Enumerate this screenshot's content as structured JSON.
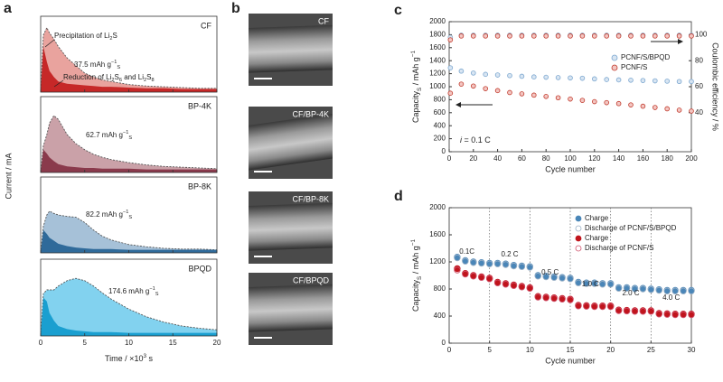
{
  "chart_data": [
    {
      "type": "area",
      "panel": "a",
      "x_label": [
        {
          "text": "Time / ×10"
        },
        {
          "sup": "3"
        },
        {
          "text": " s"
        }
      ],
      "y_label": "Current / mA",
      "xlim": [
        0,
        20
      ],
      "xticks": [
        0,
        5,
        10,
        15,
        20
      ],
      "x": [
        0,
        0.3,
        0.7,
        1,
        1.5,
        2,
        3,
        4,
        5,
        6,
        7,
        8,
        10,
        12,
        14,
        16,
        18,
        20
      ],
      "subplots": [
        {
          "name": "CF",
          "color": "#c62828",
          "fill": "#e9a39e",
          "ylim": [
            0,
            1
          ],
          "total": [
            0,
            0.75,
            0.85,
            0.78,
            0.7,
            0.6,
            0.45,
            0.35,
            0.25,
            0.2,
            0.16,
            0.14,
            0.1,
            0.08,
            0.07,
            0.06,
            0.05,
            0.05
          ],
          "base": [
            0,
            0.6,
            0.4,
            0.28,
            0.2,
            0.14,
            0.11,
            0.1,
            0.09,
            0.08,
            0.07,
            0.07,
            0.06,
            0.05,
            0.05,
            0.04,
            0.04,
            0.04
          ],
          "capacity": [
            {
              "text": "37.5 mAh g"
            },
            {
              "sup": "−1"
            },
            {
              "sub": "S"
            }
          ],
          "notes": [
            [
              {
                "text": "Precipitation of Li"
              },
              {
                "sub": "2"
              },
              {
                "text": "S"
              }
            ],
            [
              {
                "text": "Reduction of Li"
              },
              {
                "sub": "2"
              },
              {
                "text": "S"
              },
              {
                "sub": "6"
              },
              {
                "text": " and Li"
              },
              {
                "sub": "2"
              },
              {
                "text": "S"
              },
              {
                "sub": "8"
              }
            ]
          ]
        },
        {
          "name": "BP-4K",
          "color": "#8a3a4c",
          "fill": "#caa1a8",
          "ylim": [
            0,
            1
          ],
          "total": [
            0,
            0.35,
            0.5,
            0.65,
            0.75,
            0.7,
            0.5,
            0.38,
            0.3,
            0.24,
            0.2,
            0.17,
            0.13,
            0.1,
            0.08,
            0.07,
            0.06,
            0.05
          ],
          "base": [
            0,
            0.3,
            0.25,
            0.2,
            0.15,
            0.11,
            0.08,
            0.07,
            0.06,
            0.06,
            0.05,
            0.05,
            0.05,
            0.04,
            0.04,
            0.04,
            0.04,
            0.04
          ],
          "capacity": [
            {
              "text": "62.7 mAh g"
            },
            {
              "sup": "−1"
            },
            {
              "sub": "S"
            }
          ]
        },
        {
          "name": "BP-8K",
          "color": "#2f6a9a",
          "fill": "#a6c1d8",
          "ylim": [
            0,
            1
          ],
          "total": [
            0,
            0.35,
            0.5,
            0.55,
            0.52,
            0.5,
            0.48,
            0.47,
            0.4,
            0.3,
            0.22,
            0.17,
            0.11,
            0.08,
            0.06,
            0.05,
            0.05,
            0.04
          ],
          "base": [
            0,
            0.3,
            0.25,
            0.2,
            0.16,
            0.12,
            0.09,
            0.07,
            0.06,
            0.05,
            0.05,
            0.05,
            0.04,
            0.04,
            0.04,
            0.04,
            0.04,
            0.04
          ],
          "capacity": [
            {
              "text": "82.2 mAh g"
            },
            {
              "sup": "−1"
            },
            {
              "sub": "S"
            }
          ]
        },
        {
          "name": "BPQD",
          "color": "#1a9fd0",
          "fill": "#82d2ef",
          "ylim": [
            0,
            1
          ],
          "total": [
            0,
            0.55,
            0.6,
            0.6,
            0.6,
            0.65,
            0.72,
            0.75,
            0.72,
            0.65,
            0.56,
            0.48,
            0.35,
            0.25,
            0.18,
            0.13,
            0.1,
            0.08
          ],
          "base": [
            0,
            0.5,
            0.45,
            0.3,
            0.2,
            0.13,
            0.09,
            0.07,
            0.06,
            0.05,
            0.05,
            0.05,
            0.04,
            0.04,
            0.04,
            0.04,
            0.04,
            0.04
          ],
          "capacity": [
            {
              "text": "174.6 mAh g"
            },
            {
              "sup": "−1"
            },
            {
              "sub": "S"
            }
          ]
        }
      ]
    },
    {
      "type": "image",
      "panel": "b",
      "labels": [
        "CF",
        "CF/BP-4K",
        "CF/BP-8K",
        "CF/BPQD"
      ]
    },
    {
      "type": "scatter",
      "panel": "c",
      "x_label": "Cycle number",
      "y_label": [
        {
          "text": "Capacity"
        },
        {
          "sub": "S"
        },
        {
          "text": " / mAh g"
        },
        {
          "sup": "−1"
        }
      ],
      "y2_label": "Coulombic efficiency / %",
      "annotation": [
        {
          "text": "i",
          "style": "italic"
        },
        {
          "text": " = 0.1 C"
        }
      ],
      "xlim": [
        0,
        200
      ],
      "xticks": [
        0,
        20,
        40,
        60,
        80,
        100,
        120,
        140,
        160,
        180,
        200
      ],
      "ylim": [
        0,
        2000
      ],
      "yticks": [
        0,
        200,
        400,
        600,
        800,
        1000,
        1200,
        1400,
        1600,
        1800,
        2000
      ],
      "y2lim": [
        10,
        110
      ],
      "y2ticks": [
        40,
        60,
        80,
        100
      ],
      "x": [
        1,
        10,
        20,
        30,
        40,
        50,
        60,
        70,
        80,
        90,
        100,
        110,
        120,
        130,
        140,
        150,
        160,
        170,
        180,
        190,
        200
      ],
      "series": [
        {
          "name": "PCNF/S/BPQD",
          "color": "#7aa6cf",
          "fill": "#d8e5f2",
          "values": [
            1290,
            1240,
            1210,
            1190,
            1180,
            1170,
            1160,
            1150,
            1145,
            1140,
            1135,
            1130,
            1120,
            1110,
            1105,
            1100,
            1095,
            1090,
            1085,
            1080,
            1080
          ]
        },
        {
          "name": "PCNF/S",
          "color": "#c0392b",
          "fill": "#f3c6c2",
          "values": [
            900,
            1040,
            1010,
            970,
            940,
            910,
            890,
            870,
            850,
            830,
            810,
            790,
            770,
            755,
            740,
            720,
            700,
            680,
            660,
            640,
            625
          ]
        },
        {
          "axis": "y2",
          "color": "#8fa9c4",
          "fill": "#d8e5f2",
          "values": [
            98,
            99.6,
            99.6,
            99.6,
            99.6,
            99.6,
            99.6,
            99.6,
            99.6,
            99.6,
            99.6,
            99.6,
            99.6,
            99.6,
            99.6,
            99.6,
            99.6,
            99.6,
            99.6,
            99.6,
            99.6
          ]
        },
        {
          "axis": "y2",
          "color": "#c0392b",
          "fill": "#f3c6c2",
          "values": [
            96,
            99,
            99,
            99,
            99,
            99,
            99,
            99,
            99,
            99,
            99,
            99,
            99,
            99,
            99,
            99,
            99,
            99,
            99,
            99,
            99
          ]
        }
      ]
    },
    {
      "type": "scatter",
      "panel": "d",
      "x_label": "Cycle number",
      "y_label": [
        {
          "text": "Capacity"
        },
        {
          "sub": "S"
        },
        {
          "text": " / mAh g"
        },
        {
          "sup": "−1"
        }
      ],
      "xlim": [
        0,
        30
      ],
      "xticks": [
        0,
        5,
        10,
        15,
        20,
        25,
        30
      ],
      "ylim": [
        0,
        2000
      ],
      "yticks": [
        0,
        400,
        800,
        1200,
        1600,
        2000
      ],
      "vlines": [
        5,
        10,
        15,
        20,
        25
      ],
      "rates": [
        "0.1C",
        "0.2 C",
        "0.5 C",
        "1.0 C",
        "2.0 C",
        "4.0 C"
      ],
      "x": [
        1,
        2,
        3,
        4,
        5,
        6,
        7,
        8,
        9,
        10,
        11,
        12,
        13,
        14,
        15,
        16,
        17,
        18,
        19,
        20,
        21,
        22,
        23,
        24,
        25,
        26,
        27,
        28,
        29,
        30
      ],
      "series": [
        {
          "name": "Charge",
          "marker": "filled",
          "color": "#4a86b8",
          "values": [
            1270,
            1220,
            1200,
            1190,
            1180,
            1180,
            1170,
            1150,
            1140,
            1130,
            1000,
            990,
            980,
            970,
            960,
            900,
            890,
            890,
            880,
            880,
            820,
            820,
            810,
            810,
            800,
            790,
            780,
            780,
            780,
            780
          ]
        },
        {
          "name": "Discharge of PCNF/S/BPQD",
          "marker": "open",
          "color": "#9ab0c6",
          "values": [
            1260,
            1210,
            1190,
            1180,
            1170,
            1170,
            1160,
            1140,
            1130,
            1120,
            990,
            980,
            970,
            960,
            950,
            890,
            880,
            880,
            870,
            870,
            810,
            810,
            800,
            800,
            790,
            780,
            770,
            770,
            770,
            770
          ]
        },
        {
          "name": "Charge",
          "marker": "filled",
          "color": "#c0141c",
          "values": [
            1100,
            1030,
            1000,
            980,
            960,
            900,
            880,
            860,
            840,
            820,
            690,
            680,
            670,
            660,
            650,
            560,
            555,
            550,
            550,
            550,
            490,
            485,
            480,
            480,
            480,
            440,
            435,
            430,
            430,
            430
          ]
        },
        {
          "name": "Discharge of PCNF/S",
          "marker": "open",
          "color": "#d0506a",
          "values": [
            1080,
            1020,
            990,
            970,
            950,
            890,
            870,
            850,
            830,
            810,
            680,
            670,
            660,
            650,
            640,
            550,
            545,
            540,
            540,
            540,
            480,
            475,
            470,
            470,
            470,
            430,
            425,
            420,
            420,
            420
          ]
        }
      ]
    }
  ]
}
